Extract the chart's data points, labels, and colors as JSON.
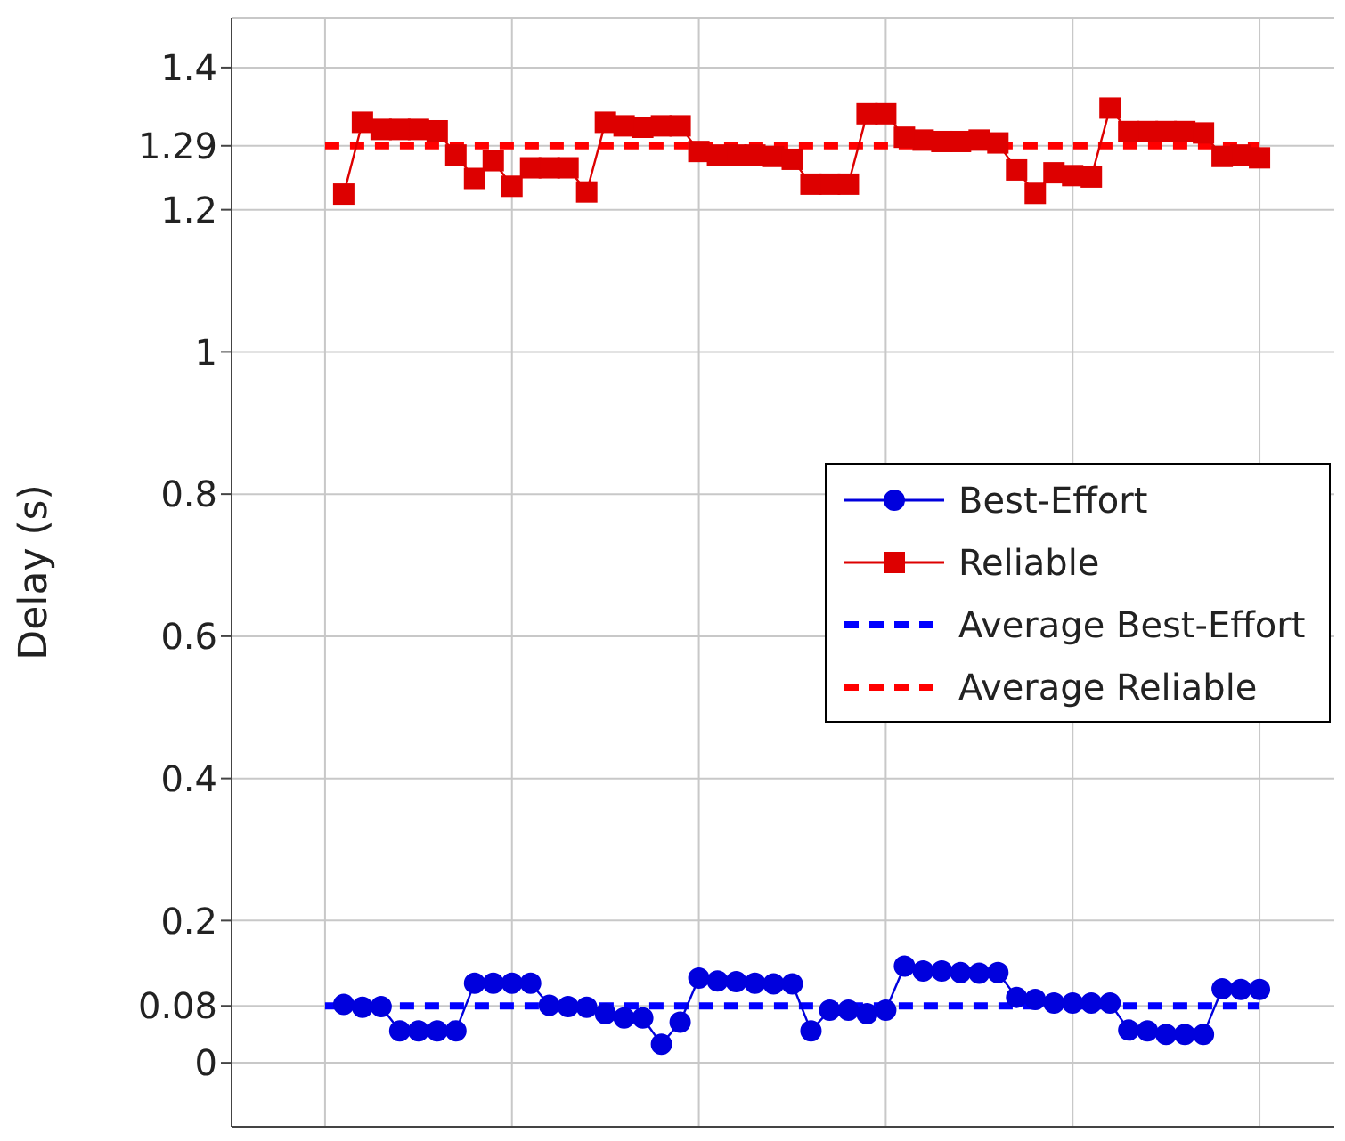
{
  "chart_data": {
    "type": "line",
    "ylabel": "Delay (s)",
    "categories": [
      null,
      null,
      null,
      null,
      null,
      null,
      null,
      null,
      null,
      null,
      null,
      null,
      null,
      null,
      null,
      null,
      null,
      null,
      null,
      null,
      null,
      null,
      null,
      null,
      null,
      null,
      null,
      null,
      null,
      null,
      null,
      null,
      null,
      null,
      null,
      null,
      null,
      null,
      null,
      null,
      null,
      null,
      null,
      null,
      null,
      null,
      null,
      null,
      null,
      null
    ],
    "series": [
      {
        "name": "Best-Effort",
        "color": "#0000dd",
        "marker": "circle",
        "values": [
          0.082,
          0.078,
          0.079,
          0.045,
          0.045,
          0.045,
          0.045,
          0.112,
          0.112,
          0.112,
          0.112,
          0.081,
          0.079,
          0.078,
          0.069,
          0.063,
          0.063,
          0.026,
          0.057,
          0.119,
          0.115,
          0.114,
          0.112,
          0.111,
          0.111,
          0.045,
          0.074,
          0.074,
          0.069,
          0.074,
          0.136,
          0.129,
          0.129,
          0.127,
          0.126,
          0.127,
          0.092,
          0.089,
          0.084,
          0.084,
          0.084,
          0.084,
          0.046,
          0.045,
          0.04,
          0.04,
          0.04,
          0.104,
          0.103,
          0.103
        ]
      },
      {
        "name": "Reliable",
        "color": "#dd0000",
        "marker": "square",
        "values": [
          1.222,
          1.323,
          1.313,
          1.313,
          1.313,
          1.311,
          1.277,
          1.244,
          1.269,
          1.233,
          1.259,
          1.259,
          1.259,
          1.225,
          1.323,
          1.318,
          1.316,
          1.318,
          1.318,
          1.282,
          1.277,
          1.277,
          1.277,
          1.275,
          1.271,
          1.236,
          1.236,
          1.236,
          1.335,
          1.335,
          1.302,
          1.298,
          1.296,
          1.296,
          1.298,
          1.294,
          1.256,
          1.223,
          1.252,
          1.248,
          1.246,
          1.343,
          1.31,
          1.31,
          1.31,
          1.31,
          1.308,
          1.275,
          1.277,
          1.273
        ]
      }
    ],
    "ref_lines": [
      {
        "axis": "y",
        "value": 0.08,
        "label": "Average Best-Effort",
        "color": "#0000ff",
        "line_style": "dashed"
      },
      {
        "axis": "y",
        "value": 1.29,
        "label": "Average Reliable",
        "color": "#ff0000",
        "line_style": "dashed"
      }
    ],
    "ylim": [
      -0.09,
      1.47
    ],
    "yticks": [
      0,
      0.08,
      0.2,
      0.4,
      0.6,
      0.8,
      1,
      1.2,
      1.29,
      1.4
    ],
    "tick_labels": "y",
    "grid": true,
    "legend": "right"
  }
}
